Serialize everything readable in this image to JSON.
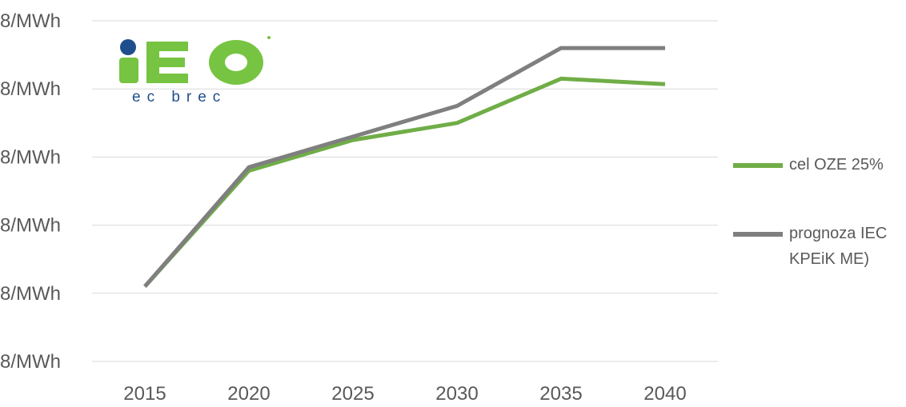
{
  "chart_data": {
    "type": "line",
    "title": "",
    "xlabel": "",
    "ylabel": "",
    "categories": [
      "2015",
      "2020",
      "2025",
      "2030",
      "2035",
      "2040"
    ],
    "y_tick_labels": [
      "8/MWh",
      "8/MWh",
      "8/MWh",
      "8/MWh",
      "8/MWh",
      "8/MWh"
    ],
    "ylim": [
      0,
      5
    ],
    "grid": true,
    "legend_position": "right",
    "series": [
      {
        "name": "cel OZE 25%",
        "color": "#70ad47",
        "values": [
          1.1,
          2.8,
          3.25,
          3.5,
          4.15,
          4.07
        ]
      },
      {
        "name": "prognoza IEC\nKPEiK ME)",
        "color": "#7f7f7f",
        "values": [
          1.1,
          2.85,
          3.3,
          3.75,
          4.6,
          4.6
        ]
      }
    ]
  },
  "logo": {
    "brand_letters": "IEO",
    "subtitle": "ec brec",
    "colors": {
      "green": "#76c442",
      "blue": "#1f4e8c"
    }
  }
}
